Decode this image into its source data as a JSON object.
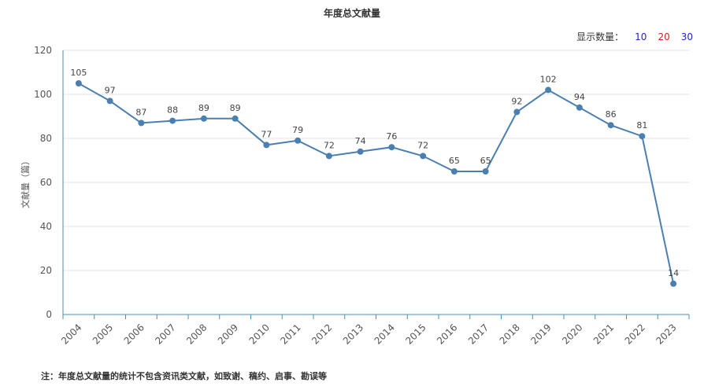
{
  "title": "年度总文献量",
  "display": {
    "label": "显示数量：",
    "options": [
      {
        "text": "10",
        "color": "#2222cc"
      },
      {
        "text": "20",
        "color": "#cc2222"
      },
      {
        "text": "30",
        "color": "#2222cc"
      }
    ]
  },
  "footnote": "注：年度总文献量的统计不包含资讯类文献，如致谢、稿约、启事、勘误等",
  "colors": {
    "line": "#4a7fb0",
    "axis": "#4a8fb0",
    "grid": "#e3e3e3"
  },
  "chart_data": {
    "type": "line",
    "title": "年度总文献量",
    "xlabel": "",
    "ylabel": "文献量（篇）",
    "ylim": [
      0,
      120
    ],
    "yticks": [
      0,
      20,
      40,
      60,
      80,
      100,
      120
    ],
    "categories": [
      "2004",
      "2005",
      "2006",
      "2007",
      "2008",
      "2009",
      "2010",
      "2011",
      "2012",
      "2013",
      "2014",
      "2015",
      "2016",
      "2017",
      "2018",
      "2019",
      "2020",
      "2021",
      "2022",
      "2023"
    ],
    "series": [
      {
        "values": [
          105,
          97,
          87,
          88,
          89,
          89,
          77,
          79,
          72,
          74,
          76,
          72,
          65,
          65,
          92,
          102,
          94,
          86,
          81,
          14
        ]
      }
    ],
    "grid": true
  }
}
